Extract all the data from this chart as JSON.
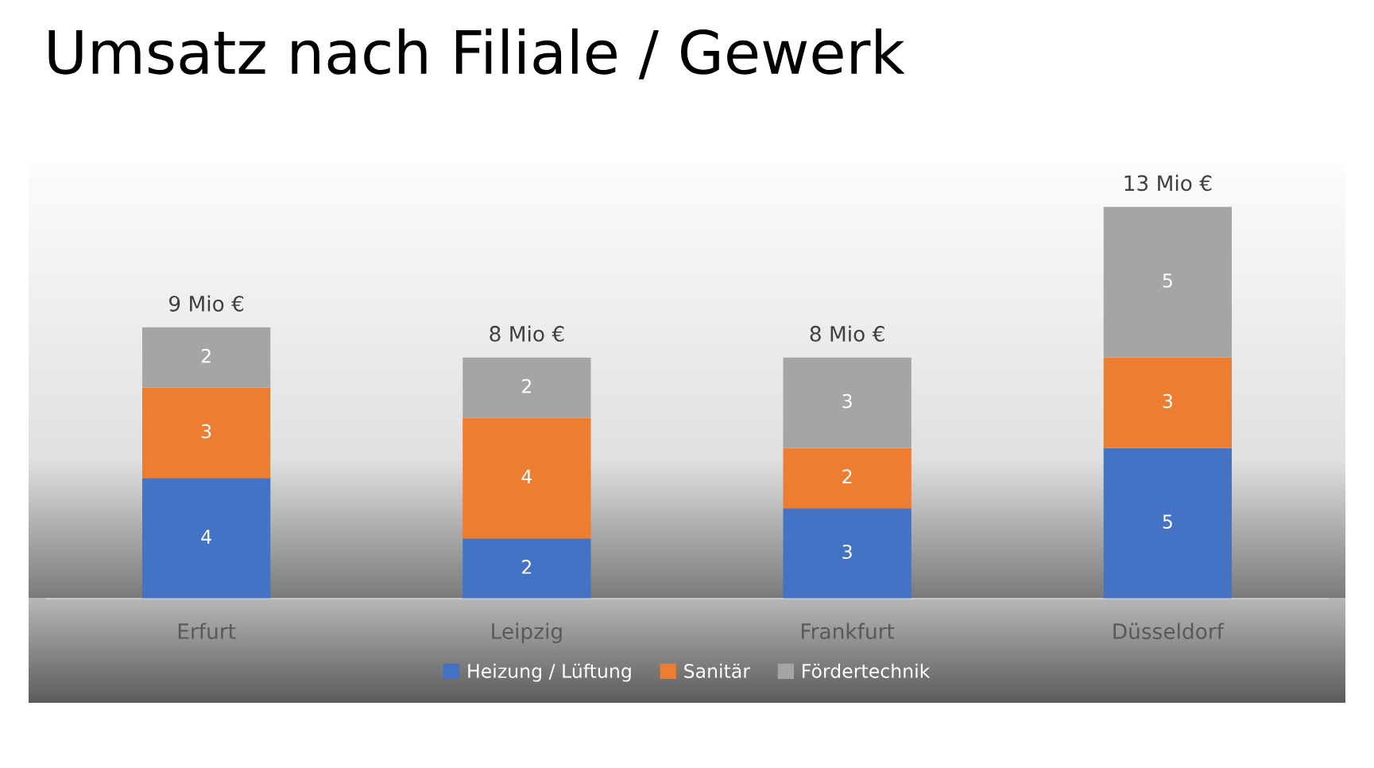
{
  "chart_data": {
    "type": "bar",
    "title": "Umsatz nach Filiale / Gewerk",
    "stacked": true,
    "data_labels": true,
    "legend": "bottom",
    "grid": false,
    "categories": [
      "Erfurt",
      "Leipzig",
      "Frankfurt",
      "Düsseldorf"
    ],
    "series": [
      {
        "name": "Heizung / Lüftung",
        "color": "#4472c4",
        "values": [
          4,
          2,
          3,
          5
        ]
      },
      {
        "name": "Sanitär",
        "color": "#ed7d31",
        "values": [
          3,
          4,
          2,
          3
        ]
      },
      {
        "name": "Fördertechnik",
        "color": "#a5a5a5",
        "values": [
          2,
          2,
          3,
          5
        ]
      }
    ],
    "totals": [
      "9 Mio €",
      "8 Mio €",
      "8 Mio €",
      "13 Mio €"
    ]
  }
}
